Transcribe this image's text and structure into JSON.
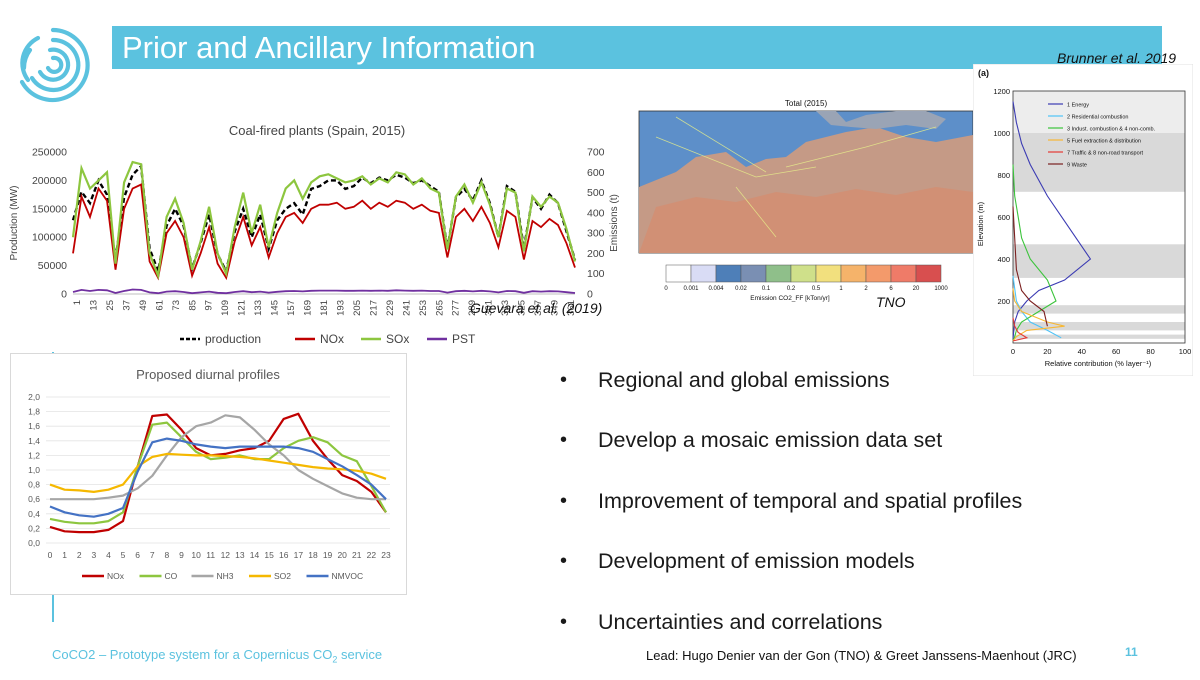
{
  "slide": {
    "title": "Prior and Ancillary Information",
    "citation_brunner": "Brunner et al. 2019",
    "footer_project": "CoCO2 – Prototype system for a Copernicus CO",
    "footer_project_sub": "2",
    "footer_project_end": " service",
    "footer_lead": "Lead: Hugo Denier van der Gon (TNO) & Greet Janssens-Maenhout (JRC)",
    "page_number": "11"
  },
  "bullets": [
    "Regional and global emissions",
    "Develop a mosaic emission data set",
    "Improvement of temporal and spatial profiles",
    "Development of emission models",
    "Uncertainties and correlations"
  ],
  "map_panel": {
    "title": "Total (2015)",
    "colorbar_ticks": [
      "0",
      "0.001",
      "0.004",
      "0.02",
      "0.1",
      "0.2",
      "0.5",
      "1",
      "2",
      "6",
      "20",
      "1000"
    ],
    "colorbar_colors": [
      "#ffffff",
      "#d9dcf5",
      "#4e7fb8",
      "#7a8fb3",
      "#8fbf8a",
      "#cfe08a",
      "#f2e07e",
      "#f5b36a",
      "#f39a6b",
      "#ef7b68",
      "#d84f4f"
    ],
    "colorbar_label": "Emission CO2_FF [kTon/yr]",
    "source": "TNO"
  },
  "chart_data": [
    {
      "type": "line",
      "title": "Coal-fired plants (Spain, 2015)",
      "ylabel": "Production (MW)",
      "y2label": "Emissions (t)",
      "ylim": [
        0,
        250000
      ],
      "y2lim": [
        0,
        700
      ],
      "yticks": [
        "0",
        "50000",
        "100000",
        "150000",
        "200000",
        "250000"
      ],
      "y2ticks": [
        "0",
        "100",
        "200",
        "300",
        "400",
        "500",
        "600",
        "700"
      ],
      "xticks": [
        "1",
        "13",
        "25",
        "37",
        "49",
        "61",
        "73",
        "85",
        "97",
        "109",
        "121",
        "133",
        "145",
        "157",
        "169",
        "181",
        "193",
        "205",
        "217",
        "229",
        "241",
        "253",
        "265",
        "277",
        "289",
        "301",
        "313",
        "325",
        "337",
        "349",
        "361"
      ],
      "source": "Guevara et al. (2019)",
      "series": [
        {
          "name": "production",
          "color": "#000000",
          "style": "dashed",
          "axis": "left",
          "values": [
            130000,
            180000,
            160000,
            200000,
            175000,
            60000,
            170000,
            210000,
            225000,
            80000,
            40000,
            120000,
            150000,
            120000,
            45000,
            90000,
            140000,
            70000,
            40000,
            110000,
            150000,
            100000,
            140000,
            80000,
            130000,
            150000,
            160000,
            140000,
            185000,
            190000,
            200000,
            200000,
            185000,
            190000,
            205000,
            195000,
            205000,
            200000,
            210000,
            205000,
            195000,
            200000,
            190000,
            180000,
            80000,
            170000,
            185000,
            165000,
            200000,
            160000,
            100000,
            190000,
            180000,
            80000,
            170000,
            150000,
            175000,
            160000,
            110000,
            60000
          ]
        },
        {
          "name": "NOx",
          "color": "#c00000",
          "style": "solid",
          "axis": "right",
          "values": [
            200,
            480,
            380,
            520,
            460,
            120,
            420,
            520,
            540,
            160,
            80,
            300,
            360,
            280,
            90,
            200,
            330,
            150,
            80,
            260,
            380,
            240,
            330,
            180,
            300,
            380,
            400,
            350,
            420,
            440,
            440,
            450,
            420,
            430,
            460,
            420,
            450,
            430,
            460,
            450,
            420,
            440,
            410,
            400,
            180,
            380,
            420,
            360,
            430,
            350,
            230,
            410,
            380,
            170,
            360,
            330,
            370,
            340,
            250,
            130
          ]
        },
        {
          "name": "SOx",
          "color": "#8dc63f",
          "style": "solid",
          "axis": "right",
          "values": [
            280,
            620,
            520,
            560,
            600,
            150,
            550,
            650,
            640,
            200,
            90,
            380,
            470,
            350,
            120,
            260,
            430,
            200,
            100,
            330,
            500,
            300,
            440,
            230,
            400,
            520,
            560,
            470,
            550,
            580,
            590,
            570,
            550,
            560,
            580,
            540,
            570,
            550,
            600,
            590,
            540,
            570,
            520,
            500,
            220,
            480,
            540,
            450,
            550,
            440,
            280,
            520,
            500,
            210,
            480,
            430,
            480,
            450,
            320,
            160
          ]
        },
        {
          "name": "PST",
          "color": "#7030a0",
          "style": "solid",
          "axis": "right",
          "values": [
            10,
            20,
            15,
            20,
            18,
            5,
            15,
            22,
            20,
            8,
            4,
            12,
            14,
            10,
            4,
            8,
            12,
            6,
            4,
            10,
            14,
            9,
            12,
            7,
            11,
            14,
            15,
            13,
            16,
            17,
            17,
            17,
            16,
            16,
            17,
            16,
            17,
            16,
            18,
            17,
            16,
            17,
            15,
            15,
            7,
            14,
            16,
            13,
            16,
            13,
            8,
            15,
            14,
            6,
            14,
            12,
            14,
            13,
            9,
            5
          ]
        }
      ]
    },
    {
      "type": "line",
      "title": "Proposed diurnal profiles",
      "ylim": [
        0,
        2.0
      ],
      "yticks": [
        "0,0",
        "0,2",
        "0,4",
        "0,6",
        "0,8",
        "1,0",
        "1,2",
        "1,4",
        "1,6",
        "1,8",
        "2,0"
      ],
      "x": [
        "0",
        "1",
        "2",
        "3",
        "4",
        "5",
        "6",
        "7",
        "8",
        "9",
        "10",
        "11",
        "12",
        "13",
        "14",
        "15",
        "16",
        "17",
        "18",
        "19",
        "20",
        "21",
        "22",
        "23"
      ],
      "series": [
        {
          "name": "NOx",
          "color": "#c00000",
          "values": [
            0.22,
            0.16,
            0.15,
            0.15,
            0.18,
            0.3,
            1.05,
            1.74,
            1.76,
            1.55,
            1.3,
            1.2,
            1.22,
            1.27,
            1.3,
            1.4,
            1.7,
            1.77,
            1.4,
            1.15,
            0.93,
            0.85,
            0.7,
            0.42
          ]
        },
        {
          "name": "CO",
          "color": "#8dc63f",
          "values": [
            0.33,
            0.29,
            0.27,
            0.27,
            0.3,
            0.42,
            1.05,
            1.62,
            1.65,
            1.45,
            1.25,
            1.15,
            1.17,
            1.2,
            1.15,
            1.15,
            1.3,
            1.4,
            1.45,
            1.38,
            1.2,
            1.12,
            0.78,
            0.42
          ]
        },
        {
          "name": "NH3",
          "color": "#a6a6a6",
          "values": [
            0.6,
            0.6,
            0.6,
            0.6,
            0.62,
            0.65,
            0.75,
            0.92,
            1.2,
            1.45,
            1.6,
            1.65,
            1.75,
            1.72,
            1.55,
            1.35,
            1.2,
            1.0,
            0.88,
            0.78,
            0.68,
            0.62,
            0.6,
            0.6
          ]
        },
        {
          "name": "SO2",
          "color": "#f5b800",
          "values": [
            0.8,
            0.73,
            0.72,
            0.7,
            0.73,
            0.8,
            1.05,
            1.18,
            1.22,
            1.21,
            1.2,
            1.2,
            1.19,
            1.18,
            1.16,
            1.13,
            1.1,
            1.07,
            1.04,
            1.02,
            1.01,
            0.99,
            0.95,
            0.88
          ]
        },
        {
          "name": "NMVOC",
          "color": "#4472c4",
          "values": [
            0.5,
            0.42,
            0.38,
            0.36,
            0.4,
            0.48,
            0.98,
            1.38,
            1.43,
            1.4,
            1.35,
            1.32,
            1.3,
            1.32,
            1.32,
            1.32,
            1.32,
            1.3,
            1.25,
            1.15,
            1.05,
            0.93,
            0.8,
            0.6
          ]
        }
      ]
    },
    {
      "type": "line",
      "panel_label": "(a)",
      "xlabel": "Relative contribution (% layer⁻¹)",
      "ylabel": "Elevation (m)",
      "xlim": [
        0,
        100
      ],
      "ylim": [
        0,
        1200
      ],
      "xticks": [
        "0",
        "20",
        "40",
        "60",
        "80",
        "100"
      ],
      "yticks": [
        "200",
        "400",
        "600",
        "800",
        "1000",
        "1200"
      ],
      "series": [
        {
          "name": "1 Energy",
          "color": "#3b3bb3",
          "x": [
            0,
            2,
            5,
            10,
            20,
            30,
            45,
            30,
            15,
            8,
            3,
            1,
            0
          ],
          "y": [
            1150,
            1050,
            950,
            850,
            700,
            580,
            400,
            300,
            250,
            200,
            150,
            100,
            20
          ]
        },
        {
          "name": "2 Residential combustion",
          "color": "#4fc3f7",
          "x": [
            28,
            20,
            10,
            5,
            2,
            1,
            0
          ],
          "y": [
            25,
            60,
            100,
            150,
            200,
            260,
            320
          ]
        },
        {
          "name": "3 Indust. combustion & 4 non-comb.",
          "color": "#3cc43c",
          "x": [
            0,
            1,
            3,
            5,
            10,
            20,
            25,
            15,
            5,
            2,
            1,
            0
          ],
          "y": [
            850,
            700,
            600,
            500,
            400,
            300,
            200,
            150,
            100,
            60,
            30,
            10
          ]
        },
        {
          "name": "5 Fuel extraction & distribution",
          "color": "#f7b733",
          "x": [
            0,
            2,
            8,
            30,
            20,
            5,
            1,
            0
          ],
          "y": [
            10,
            30,
            60,
            80,
            100,
            150,
            200,
            260
          ]
        },
        {
          "name": "7 Traffic & 8 non-road transport",
          "color": "#e53935",
          "x": [
            0,
            8,
            3,
            1,
            0
          ],
          "y": [
            10,
            25,
            50,
            80,
            120
          ]
        },
        {
          "name": "9 Waste",
          "color": "#7b1f1f",
          "x": [
            20,
            18,
            10,
            5,
            2,
            1,
            0
          ],
          "y": [
            80,
            150,
            200,
            250,
            350,
            500,
            650
          ]
        }
      ]
    }
  ]
}
